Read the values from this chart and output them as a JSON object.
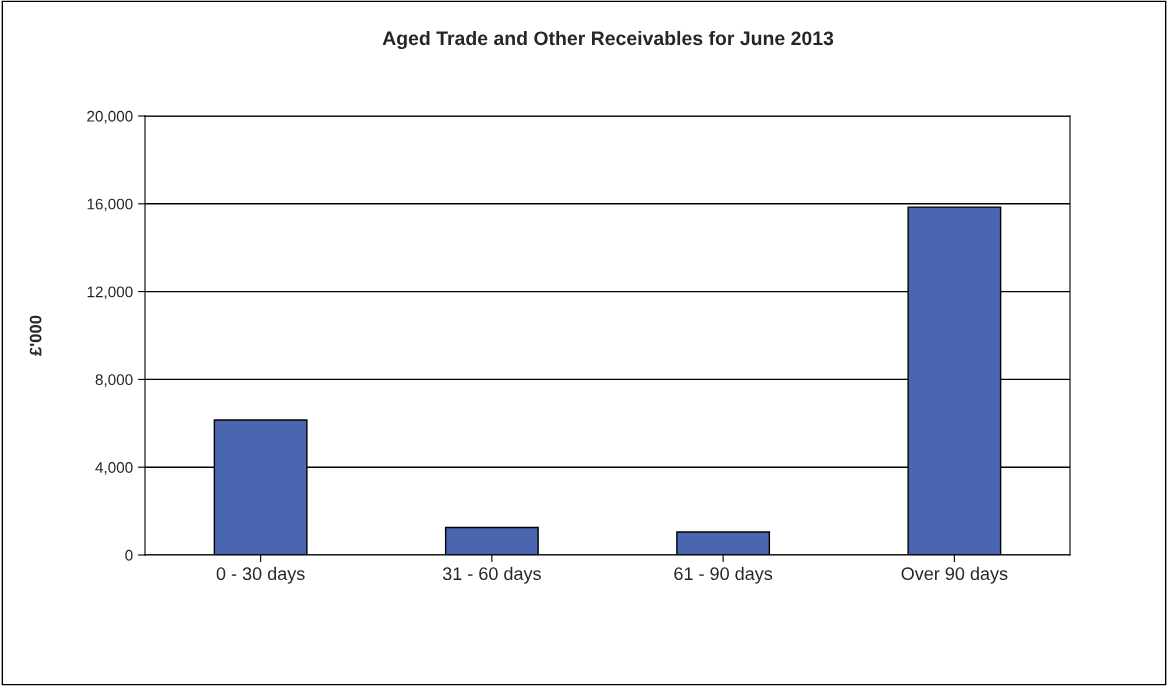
{
  "chart_data": {
    "type": "bar",
    "title": "Aged Trade and Other Receivables for June 2013",
    "ylabel": "£'000",
    "categories": [
      "0 - 30 days",
      "31 - 60 days",
      "61 - 90 days",
      "Over 90 days"
    ],
    "values": [
      6150,
      1250,
      1050,
      15850
    ],
    "color": "#4a66b0",
    "ylim": [
      0,
      20000
    ],
    "yticks": [
      {
        "value": 0,
        "label": "0"
      },
      {
        "value": 4000,
        "label": "4,000"
      },
      {
        "value": 8000,
        "label": "8,000"
      },
      {
        "value": 12000,
        "label": "12,000"
      },
      {
        "value": 16000,
        "label": "16,000"
      },
      {
        "value": 20000,
        "label": "20,000"
      }
    ],
    "grid": "y",
    "legend": false
  }
}
